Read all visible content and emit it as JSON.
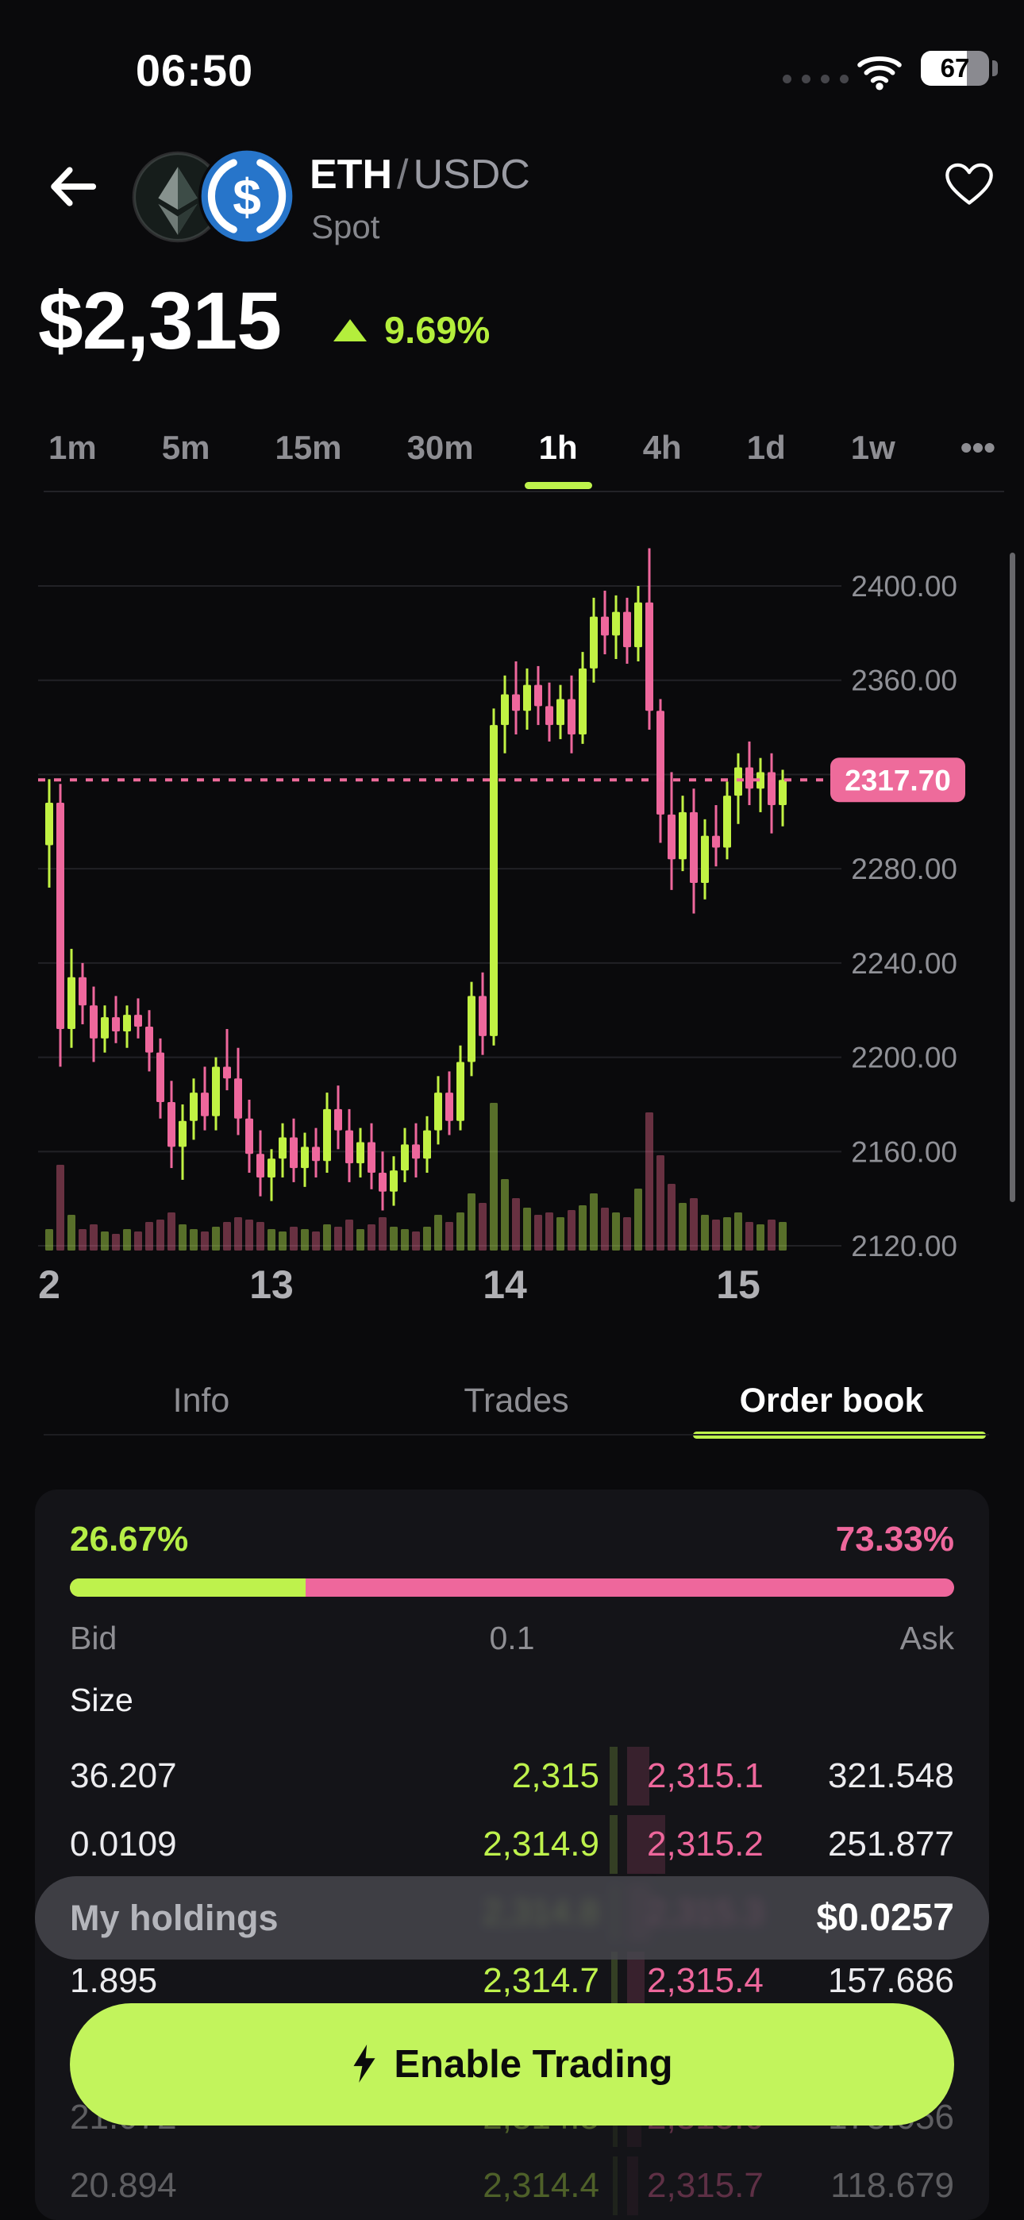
{
  "status_bar": {
    "time": "06:50",
    "battery_percent": "67",
    "battery_level": 0.67
  },
  "header": {
    "base_asset": "ETH",
    "separator": "/",
    "quote_asset": "USDC",
    "market_type": "Spot"
  },
  "price": {
    "value": "$2,315",
    "change": "9.69%",
    "direction": "up",
    "change_color": "#b4ee3c"
  },
  "timeframes": {
    "items": [
      "1m",
      "5m",
      "15m",
      "30m",
      "1h",
      "4h",
      "1d",
      "1w",
      "•••"
    ],
    "active": "1h"
  },
  "chart_data": {
    "type": "candlestick_with_volume",
    "pair": "ETH/USDC",
    "interval": "1h",
    "y_axis": {
      "tick_values": [
        2400,
        2360,
        2280,
        2240,
        2200,
        2160,
        2120
      ],
      "gridline_values": [
        2400,
        2360,
        2320,
        2280,
        2240,
        2200,
        2160,
        2120
      ],
      "range": [
        2115,
        2425
      ],
      "tick_format": "0.00"
    },
    "current_price": {
      "value": 2317.7,
      "label": "2317.70",
      "color": "#ee6b9b",
      "line_style": "dashed"
    },
    "x_axis": {
      "labels": [
        {
          "text": "2",
          "candle_index": 0
        },
        {
          "text": "13",
          "candle_index": 20
        },
        {
          "text": "14",
          "candle_index": 41
        },
        {
          "text": "15",
          "candle_index": 62
        }
      ]
    },
    "colors": {
      "up": "#c1f243",
      "down": "#ee679c",
      "volume_up": "rgba(185,235,80,0.45)",
      "volume_down": "rgba(235,105,140,0.42)",
      "grid": "#222226",
      "axis_text": "#8f9096"
    },
    "legend_position": "none",
    "grid": true,
    "candles_ohlcv": [
      [
        2290,
        2318,
        2272,
        2308,
        9
      ],
      [
        2308,
        2316,
        2196,
        2212,
        36
      ],
      [
        2212,
        2246,
        2204,
        2234,
        15
      ],
      [
        2234,
        2240,
        2214,
        2222,
        9
      ],
      [
        2222,
        2230,
        2198,
        2208,
        11
      ],
      [
        2208,
        2222,
        2202,
        2217,
        8
      ],
      [
        2217,
        2226,
        2206,
        2211,
        7
      ],
      [
        2211,
        2222,
        2204,
        2218,
        9
      ],
      [
        2218,
        2225,
        2208,
        2213,
        8
      ],
      [
        2213,
        2220,
        2194,
        2202,
        12
      ],
      [
        2202,
        2208,
        2174,
        2181,
        13
      ],
      [
        2181,
        2190,
        2153,
        2162,
        16
      ],
      [
        2162,
        2180,
        2148,
        2173,
        11
      ],
      [
        2173,
        2191,
        2165,
        2185,
        9
      ],
      [
        2185,
        2196,
        2169,
        2175,
        8
      ],
      [
        2175,
        2200,
        2169,
        2196,
        10
      ],
      [
        2196,
        2212,
        2186,
        2191,
        12
      ],
      [
        2191,
        2204,
        2167,
        2174,
        14
      ],
      [
        2174,
        2182,
        2151,
        2159,
        13
      ],
      [
        2159,
        2169,
        2141,
        2149,
        12
      ],
      [
        2149,
        2161,
        2139,
        2157,
        9
      ],
      [
        2157,
        2172,
        2149,
        2166,
        8
      ],
      [
        2166,
        2174,
        2147,
        2153,
        10
      ],
      [
        2153,
        2168,
        2145,
        2162,
        9
      ],
      [
        2162,
        2170,
        2149,
        2156,
        8
      ],
      [
        2156,
        2185,
        2151,
        2178,
        11
      ],
      [
        2178,
        2188,
        2161,
        2169,
        10
      ],
      [
        2169,
        2178,
        2147,
        2155,
        13
      ],
      [
        2155,
        2170,
        2149,
        2164,
        9
      ],
      [
        2164,
        2172,
        2144,
        2151,
        11
      ],
      [
        2151,
        2160,
        2135,
        2143,
        14
      ],
      [
        2143,
        2158,
        2137,
        2152,
        10
      ],
      [
        2152,
        2170,
        2147,
        2163,
        9
      ],
      [
        2163,
        2172,
        2149,
        2157,
        8
      ],
      [
        2157,
        2175,
        2151,
        2169,
        10
      ],
      [
        2169,
        2192,
        2163,
        2185,
        15
      ],
      [
        2185,
        2194,
        2167,
        2173,
        12
      ],
      [
        2173,
        2205,
        2169,
        2198,
        16
      ],
      [
        2198,
        2232,
        2192,
        2226,
        24
      ],
      [
        2226,
        2236,
        2201,
        2209,
        20
      ],
      [
        2209,
        2348,
        2205,
        2341,
        62
      ],
      [
        2341,
        2362,
        2329,
        2354,
        30
      ],
      [
        2354,
        2368,
        2337,
        2347,
        22
      ],
      [
        2347,
        2365,
        2339,
        2358,
        18
      ],
      [
        2358,
        2366,
        2341,
        2349,
        15
      ],
      [
        2349,
        2359,
        2334,
        2341,
        16
      ],
      [
        2341,
        2358,
        2335,
        2352,
        14
      ],
      [
        2352,
        2362,
        2329,
        2337,
        17
      ],
      [
        2337,
        2372,
        2333,
        2365,
        19
      ],
      [
        2365,
        2395,
        2359,
        2387,
        24
      ],
      [
        2387,
        2398,
        2371,
        2379,
        18
      ],
      [
        2379,
        2396,
        2369,
        2389,
        16
      ],
      [
        2389,
        2395,
        2367,
        2374,
        14
      ],
      [
        2374,
        2400,
        2368,
        2393,
        26
      ],
      [
        2393,
        2416,
        2339,
        2347,
        58
      ],
      [
        2347,
        2352,
        2291,
        2303,
        40
      ],
      [
        2303,
        2321,
        2271,
        2284,
        28
      ],
      [
        2284,
        2311,
        2279,
        2304,
        20
      ],
      [
        2304,
        2314,
        2261,
        2274,
        22
      ],
      [
        2274,
        2301,
        2267,
        2294,
        15
      ],
      [
        2294,
        2307,
        2281,
        2289,
        13
      ],
      [
        2289,
        2317,
        2284,
        2311,
        14
      ],
      [
        2311,
        2329,
        2299,
        2323,
        16
      ],
      [
        2323,
        2334,
        2307,
        2314,
        12
      ],
      [
        2314,
        2327,
        2304,
        2321,
        11
      ],
      [
        2321,
        2329,
        2295,
        2307,
        13
      ],
      [
        2307,
        2322,
        2298,
        2317.7,
        12
      ]
    ]
  },
  "tabs": {
    "items": [
      "Info",
      "Trades",
      "Order book"
    ],
    "active": "Order book"
  },
  "order_book": {
    "bid_percent": "26.67%",
    "ask_percent": "73.33%",
    "bid_ratio": 0.2667,
    "labels": {
      "bid": "Bid",
      "mid": "0.1",
      "ask": "Ask",
      "size": "Size"
    },
    "rows": [
      {
        "bid_size": "36.207",
        "bid_price": "2,315",
        "ask_price": "2,315.1",
        "ask_size": "321.548",
        "state": "normal",
        "bid_depth": 10,
        "ask_depth": 28
      },
      {
        "bid_size": "0.0109",
        "bid_price": "2,314.9",
        "ask_price": "2,315.2",
        "ask_size": "251.877",
        "state": "normal",
        "bid_depth": 10,
        "ask_depth": 48
      },
      {
        "bid_size": "",
        "bid_price": "2,314.8",
        "ask_price": "2,315.3",
        "ask_size": "",
        "state": "blurred",
        "bid_depth": 8,
        "ask_depth": 30
      },
      {
        "bid_size": "1.895",
        "bid_price": "2,314.7",
        "ask_price": "2,315.4",
        "ask_size": "157.686",
        "state": "normal",
        "bid_depth": 8,
        "ask_depth": 22
      },
      {
        "bid_size": "",
        "bid_price": "",
        "ask_price": "",
        "ask_size": "",
        "state": "hidden",
        "bid_depth": 0,
        "ask_depth": 0
      },
      {
        "bid_size": "21.072",
        "bid_price": "2,314.5",
        "ask_price": "2,315.6",
        "ask_size": "175.056",
        "state": "dimmed",
        "bid_depth": 6,
        "ask_depth": 18
      },
      {
        "bid_size": "20.894",
        "bid_price": "2,314.4",
        "ask_price": "2,315.7",
        "ask_size": "118.679",
        "state": "dimmed",
        "bid_depth": 6,
        "ask_depth": 14
      }
    ]
  },
  "holdings": {
    "label": "My holdings",
    "value": "$0.0257"
  },
  "cta": {
    "label": "Enable Trading"
  },
  "colors": {
    "accent_lime": "#bef24c",
    "accent_pink": "#ee679c",
    "background": "#0a0a0c",
    "card": "#141418"
  }
}
